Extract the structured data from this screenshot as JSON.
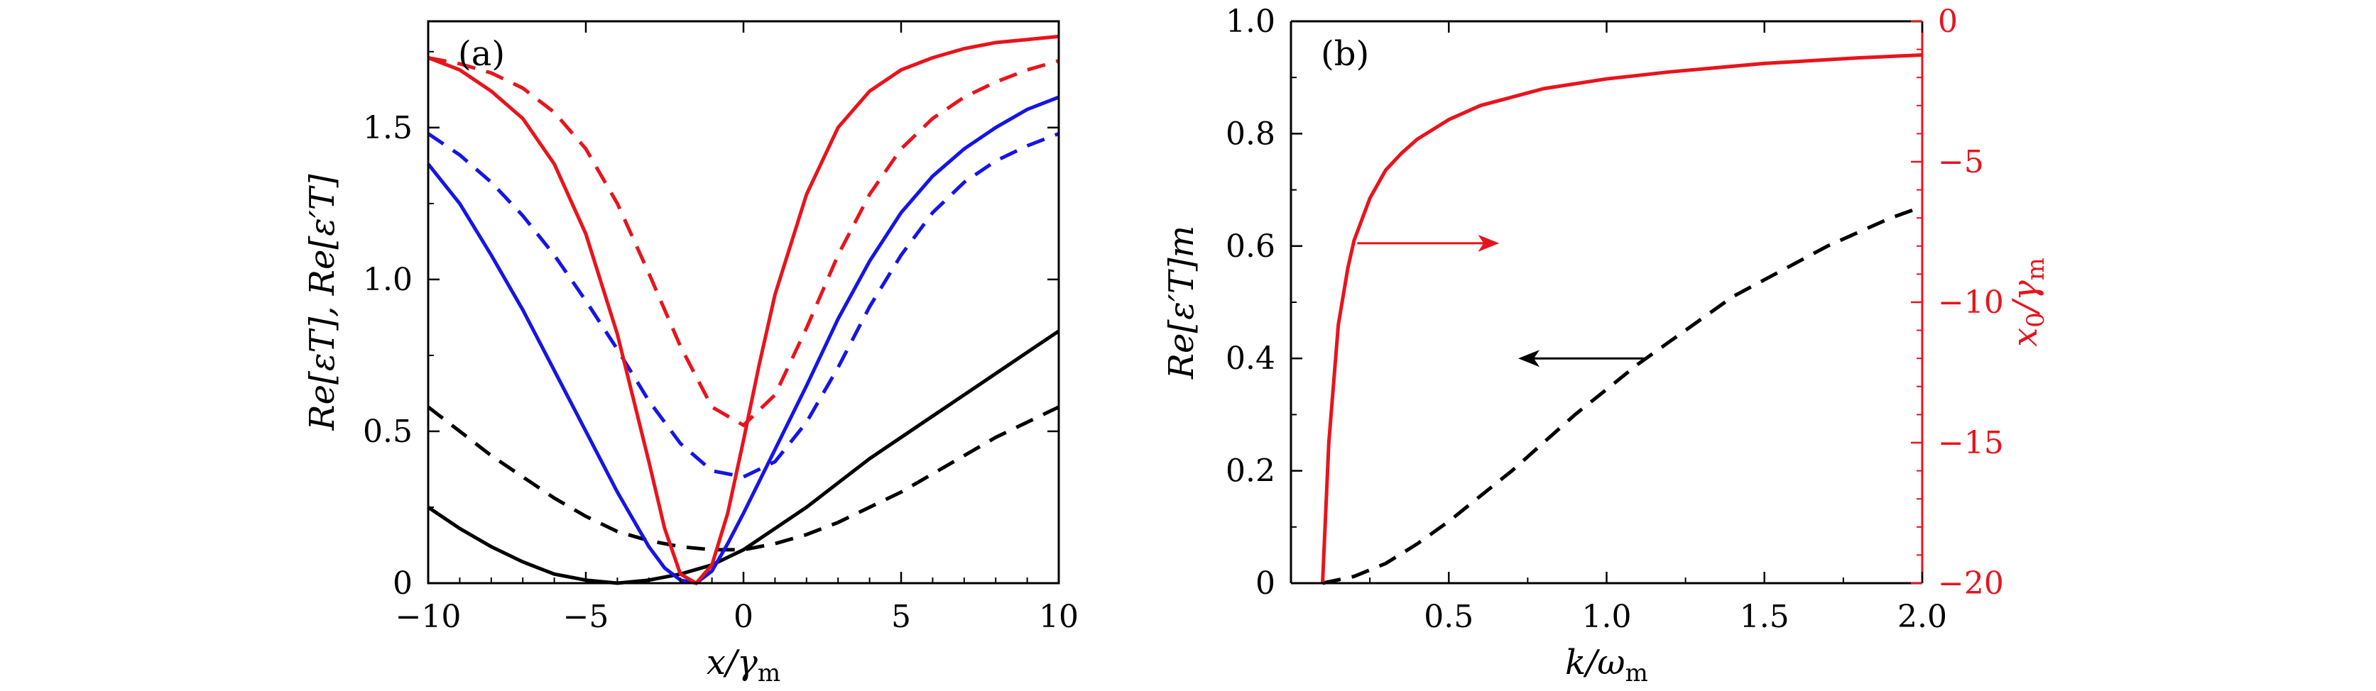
{
  "colors": {
    "black": "#000000",
    "blue": "#1515e6",
    "red": "#e8141c"
  },
  "chart_data": [
    {
      "type": "line",
      "panel_label": "(a)",
      "xlabel_main": "x/γ",
      "xlabel_sub": "m",
      "ylabel": "Re[εT], Re[ε′T]",
      "xlim": [
        -10,
        10
      ],
      "ylim": [
        0,
        1.85
      ],
      "xticks": [
        "−10",
        "−5",
        "0",
        "5",
        "10"
      ],
      "xtick_values": [
        -10,
        -5,
        0,
        5,
        10
      ],
      "yticks": [
        "0",
        "0.5",
        "1.0",
        "1.5"
      ],
      "ytick_values": [
        0,
        0.5,
        1.0,
        1.5
      ],
      "series": [
        {
          "color": "black",
          "dash": "solid",
          "x": [
            -10,
            -9,
            -8,
            -7,
            -6,
            -5,
            -4,
            -3,
            -2,
            -1,
            0,
            1,
            2,
            3,
            4,
            5,
            6,
            7,
            8,
            9,
            10
          ],
          "y": [
            0.25,
            0.18,
            0.12,
            0.07,
            0.03,
            0.01,
            0.0,
            0.01,
            0.03,
            0.06,
            0.11,
            0.18,
            0.25,
            0.33,
            0.41,
            0.48,
            0.55,
            0.62,
            0.69,
            0.76,
            0.83
          ]
        },
        {
          "color": "black",
          "dash": "dashed",
          "x": [
            -10,
            -9,
            -8,
            -7,
            -6,
            -5,
            -4,
            -3,
            -2,
            -1,
            0,
            1,
            2,
            3,
            4,
            5,
            6,
            7,
            8,
            9,
            10
          ],
          "y": [
            0.58,
            0.5,
            0.42,
            0.35,
            0.28,
            0.22,
            0.17,
            0.14,
            0.12,
            0.11,
            0.11,
            0.13,
            0.16,
            0.2,
            0.25,
            0.3,
            0.36,
            0.42,
            0.48,
            0.53,
            0.58
          ]
        },
        {
          "color": "blue",
          "dash": "solid",
          "x": [
            -10,
            -9,
            -8,
            -7,
            -6,
            -5,
            -4,
            -3,
            -2.5,
            -2,
            -1.5,
            -1,
            -0.5,
            0,
            1,
            2,
            3,
            4,
            5,
            6,
            7,
            8,
            9,
            10
          ],
          "y": [
            1.38,
            1.25,
            1.08,
            0.9,
            0.7,
            0.5,
            0.3,
            0.12,
            0.05,
            0.01,
            0.0,
            0.04,
            0.13,
            0.23,
            0.44,
            0.65,
            0.87,
            1.06,
            1.22,
            1.34,
            1.43,
            1.5,
            1.56,
            1.6
          ]
        },
        {
          "color": "blue",
          "dash": "dashed",
          "x": [
            -10,
            -9,
            -8,
            -7,
            -6,
            -5,
            -4,
            -3,
            -2,
            -1,
            0,
            1,
            2,
            3,
            4,
            5,
            6,
            7,
            8,
            9,
            10
          ],
          "y": [
            1.48,
            1.41,
            1.32,
            1.21,
            1.08,
            0.93,
            0.77,
            0.6,
            0.46,
            0.37,
            0.35,
            0.4,
            0.53,
            0.71,
            0.91,
            1.08,
            1.22,
            1.32,
            1.39,
            1.44,
            1.48
          ]
        },
        {
          "color": "red",
          "dash": "solid",
          "x": [
            -10,
            -9,
            -8,
            -7,
            -6,
            -5,
            -4,
            -3,
            -2.5,
            -2,
            -1.5,
            -1,
            -0.5,
            0,
            0.5,
            1,
            2,
            3,
            4,
            5,
            6,
            7,
            8,
            9,
            10
          ],
          "y": [
            1.73,
            1.69,
            1.62,
            1.53,
            1.38,
            1.15,
            0.82,
            0.4,
            0.18,
            0.03,
            0.0,
            0.06,
            0.23,
            0.47,
            0.72,
            0.95,
            1.28,
            1.5,
            1.62,
            1.69,
            1.73,
            1.76,
            1.78,
            1.79,
            1.8
          ]
        },
        {
          "color": "red",
          "dash": "dashed",
          "x": [
            -10,
            -9,
            -8,
            -7,
            -6,
            -5,
            -4,
            -3,
            -2,
            -1,
            0,
            1,
            2,
            3,
            4,
            5,
            6,
            7,
            8,
            9,
            10
          ],
          "y": [
            1.73,
            1.71,
            1.68,
            1.63,
            1.55,
            1.43,
            1.25,
            1.02,
            0.78,
            0.58,
            0.52,
            0.62,
            0.84,
            1.08,
            1.28,
            1.43,
            1.53,
            1.6,
            1.65,
            1.69,
            1.72
          ]
        }
      ]
    },
    {
      "type": "line",
      "panel_label": "(b)",
      "xlabel_main": "k/ω",
      "xlabel_sub": "m",
      "ylabel_left": "Re[ε′T]m",
      "ylabel_right_main": "x",
      "ylabel_right_sub": "0",
      "ylabel_right_tail": "/γ",
      "ylabel_right_sub2": "m",
      "xlim": [
        0,
        2.0
      ],
      "ylim_left": [
        0,
        1.0
      ],
      "ylim_right": [
        -20,
        0
      ],
      "xticks": [
        "0.5",
        "1.0",
        "1.5",
        "2.0"
      ],
      "xtick_values": [
        0.5,
        1.0,
        1.5,
        2.0
      ],
      "yticks_left": [
        "0",
        "0.2",
        "0.4",
        "0.6",
        "0.8",
        "1.0"
      ],
      "ytick_left_values": [
        0,
        0.2,
        0.4,
        0.6,
        0.8,
        1.0
      ],
      "yticks_right": [
        "0",
        "−5",
        "−10",
        "−15",
        "−20"
      ],
      "ytick_right_values": [
        0,
        -5,
        -10,
        -15,
        -20
      ],
      "series": [
        {
          "color": "black",
          "dash": "dashed",
          "axis": "left",
          "x": [
            0.1,
            0.2,
            0.3,
            0.4,
            0.5,
            0.6,
            0.7,
            0.8,
            0.9,
            1.0,
            1.1,
            1.2,
            1.3,
            1.4,
            1.5,
            1.6,
            1.7,
            1.8,
            1.9,
            2.0
          ],
          "y": [
            0.0,
            0.012,
            0.035,
            0.07,
            0.11,
            0.155,
            0.2,
            0.25,
            0.3,
            0.345,
            0.39,
            0.43,
            0.47,
            0.51,
            0.54,
            0.57,
            0.6,
            0.625,
            0.65,
            0.67
          ]
        },
        {
          "color": "red",
          "dash": "solid",
          "axis": "right",
          "x": [
            0.1,
            0.12,
            0.15,
            0.18,
            0.2,
            0.25,
            0.3,
            0.35,
            0.4,
            0.5,
            0.6,
            0.7,
            0.8,
            1.0,
            1.2,
            1.5,
            1.8,
            2.0
          ],
          "y": [
            -20,
            -15,
            -10.8,
            -8.8,
            -7.8,
            -6.3,
            -5.3,
            -4.7,
            -4.2,
            -3.5,
            -3.0,
            -2.7,
            -2.4,
            -2.05,
            -1.8,
            -1.5,
            -1.3,
            -1.2
          ]
        }
      ],
      "annotations": [
        {
          "color": "red",
          "direction": "right",
          "x_from": 0.21,
          "x_to": 0.66,
          "y_right": -7.9
        },
        {
          "color": "black",
          "direction": "left",
          "x_from": 1.12,
          "x_to": 0.72,
          "y_left": 0.4
        }
      ]
    }
  ]
}
